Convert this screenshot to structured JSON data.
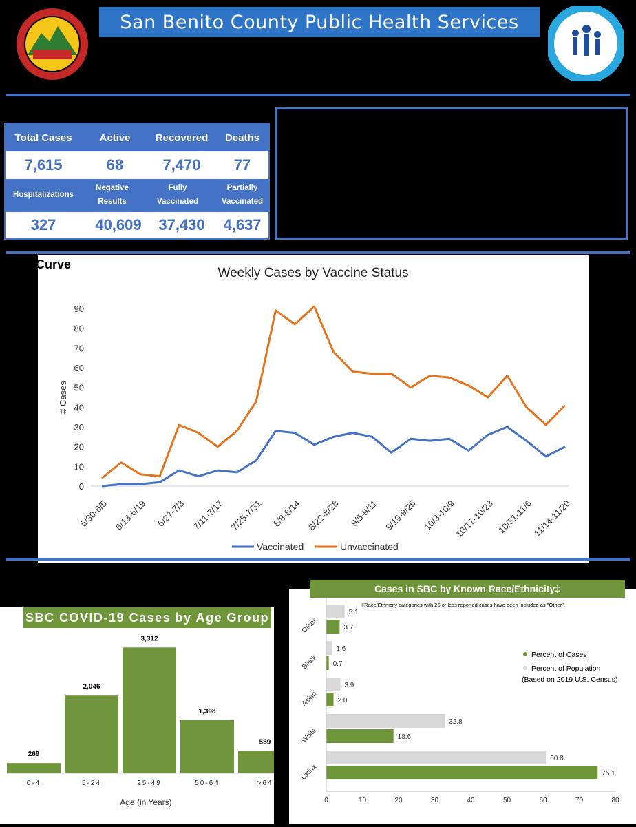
{
  "header": {
    "title": "San Benito County Public Health Services"
  },
  "logos": {
    "county_seal": "county-seal-logo",
    "health_logo": "public-health-services-logo"
  },
  "stats": {
    "headers1": [
      "Total Cases",
      "Active",
      "Recovered",
      "Deaths"
    ],
    "values1": [
      "7,615",
      "68",
      "7,470",
      "77"
    ],
    "headers2": [
      "Hospitalizations",
      "Negative Results",
      "Fully Vaccinated",
      "Partially Vaccinated"
    ],
    "values2": [
      "327",
      "40,609",
      "37,430",
      "4,637"
    ]
  },
  "curve_section_label": ". Curve",
  "colors": {
    "blue": "#4472c4",
    "orange": "#e3741f",
    "green": "#70963c",
    "gray": "#d9d9d9"
  },
  "chart_data": [
    {
      "type": "line",
      "title": "Weekly Cases by Vaccine Status",
      "ylabel": "# Cases",
      "xlabel": "",
      "ylim": [
        0,
        90
      ],
      "yticks": [
        0,
        10,
        20,
        30,
        40,
        50,
        60,
        70,
        80,
        90
      ],
      "x": [
        "5/30-6/5",
        "6/6-6/12",
        "6/13-6/19",
        "6/20-6/26",
        "6/27-7/3",
        "7/4-7/10",
        "7/11-7/17",
        "7/18-7/24",
        "7/25-7/31",
        "8/1-8/7",
        "8/8-8/14",
        "8/15-8/21",
        "8/22-8/28",
        "8/29-9/4",
        "9/5-9/11",
        "9/12-9/18",
        "9/19-9/25",
        "9/26-10/2",
        "10/3-10/9",
        "10/10-10/16",
        "10/17-10/23",
        "10/24-10/30",
        "10/31-11/6",
        "11/7-11/13",
        "11/14-11/20"
      ],
      "x_tick_labels": [
        "5/30-6/5",
        "6/13-6/19",
        "6/27-7/3",
        "7/11-7/17",
        "7/25-7/31",
        "8/8-8/14",
        "8/22-8/28",
        "9/5-9/11",
        "9/19-9/25",
        "10/3-10/9",
        "10/17-10/23",
        "10/31-11/6",
        "11/14-11/20"
      ],
      "series": [
        {
          "name": "Vaccinated",
          "color": "#4472c4",
          "values": [
            0,
            1,
            1,
            2,
            8,
            5,
            8,
            7,
            13,
            28,
            27,
            21,
            25,
            27,
            25,
            17,
            24,
            23,
            24,
            18,
            26,
            30,
            23,
            15,
            20
          ]
        },
        {
          "name": "Unvaccinated",
          "color": "#e3741f",
          "values": [
            4,
            12,
            6,
            5,
            31,
            27,
            20,
            28,
            43,
            89,
            82,
            91,
            68,
            58,
            57,
            57,
            50,
            56,
            55,
            51,
            45,
            56,
            40,
            31,
            41
          ]
        }
      ],
      "legend": "bottom"
    },
    {
      "type": "bar",
      "title": "SBC COVID-19 Cases by Age Group",
      "xlabel": "Age (in Years)",
      "categories": [
        "0-4",
        "5-24",
        "25-49",
        "50-64",
        ">64"
      ],
      "values": [
        269,
        2046,
        3312,
        1398,
        589
      ],
      "data_labels": [
        "269",
        "2,046",
        "3,312",
        "1,398",
        "589"
      ],
      "color": "#70963c"
    },
    {
      "type": "bar",
      "orientation": "horizontal",
      "title": "Cases in SBC by Known Race/Ethnicity‡",
      "note": "‡Race/Ethnicity categories with 25 or less reported cases have been included as \"Other\".",
      "categories": [
        "Other",
        "Black",
        "Asian",
        "White",
        "Latinx"
      ],
      "xlim": [
        0,
        80
      ],
      "xticks": [
        0,
        10,
        20,
        30,
        40,
        50,
        60,
        70,
        80
      ],
      "series": [
        {
          "name": "Percent of Population",
          "color": "#d9d9d9",
          "values": [
            5.1,
            1.6,
            3.9,
            32.8,
            60.8
          ]
        },
        {
          "name": "Percent of Cases",
          "color": "#70963c",
          "values": [
            3.7,
            0.7,
            2.0,
            18.6,
            75.1
          ]
        }
      ],
      "legend_entries": [
        "Percent of Cases",
        "Percent of Population",
        "(Based on 2019 U.S. Census)"
      ],
      "legend": "right"
    }
  ]
}
